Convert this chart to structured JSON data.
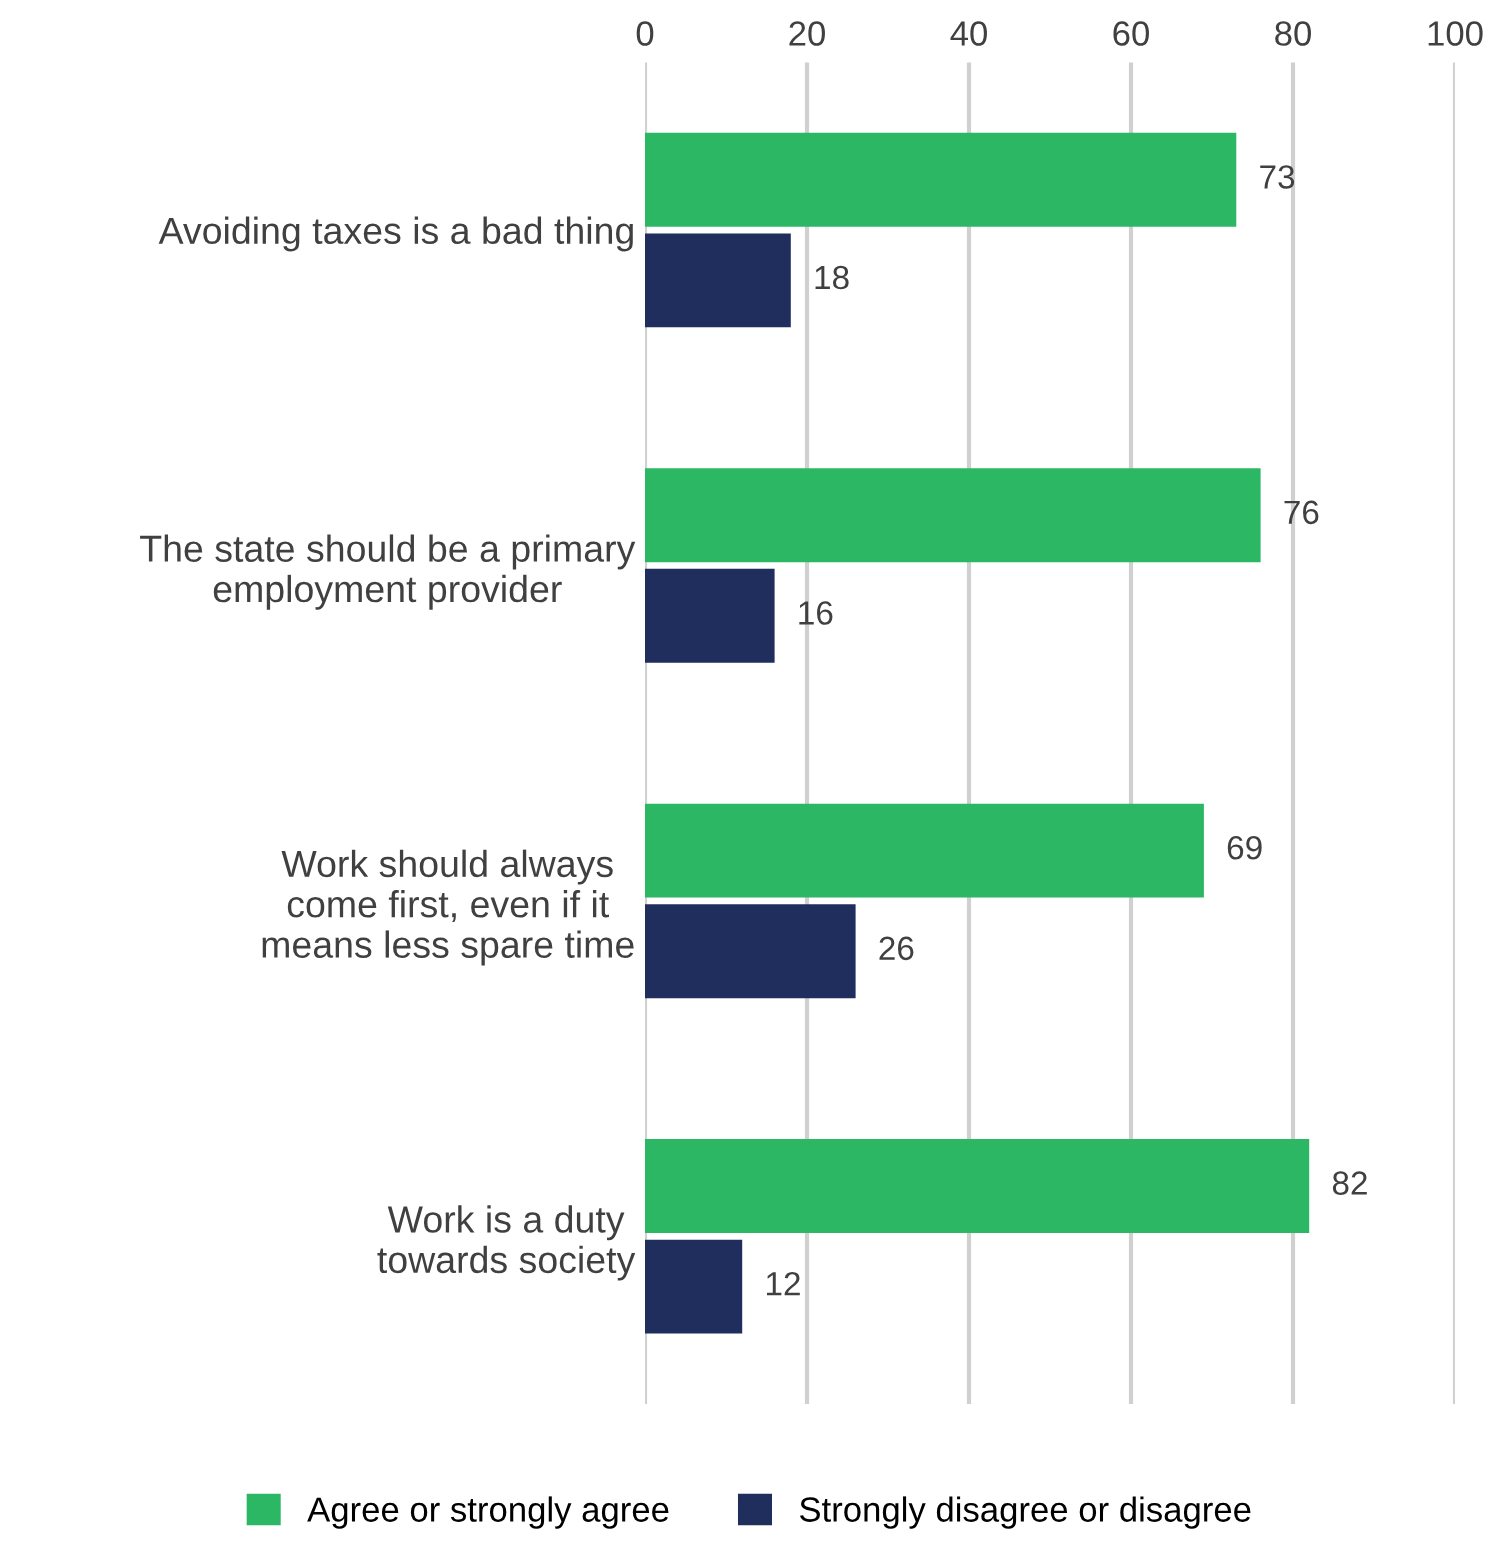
{
  "chart_data": {
    "type": "bar",
    "orientation": "horizontal",
    "categories": [
      "Avoiding taxes is a bad thing",
      "The state should be a primary\nemployment provider",
      "Work should always\ncome first, even if it\nmeans less spare time",
      "Work is a duty\ntowards society"
    ],
    "series": [
      {
        "name": "Agree or strongly agree",
        "color": "#2cb764",
        "values": [
          73,
          76,
          69,
          82
        ]
      },
      {
        "name": "Strongly disagree or disagree",
        "color": "#1f2e5c",
        "values": [
          18,
          16,
          26,
          12
        ]
      }
    ],
    "xlim": [
      0,
      100
    ],
    "xticks": [
      0,
      20,
      40,
      60,
      80,
      100
    ],
    "grid": "x",
    "legend": "bottom",
    "data_labels": true
  }
}
